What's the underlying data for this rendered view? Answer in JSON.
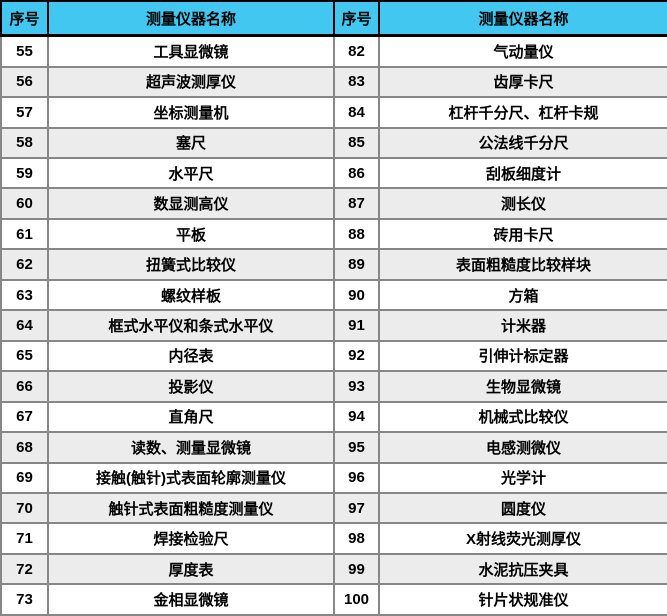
{
  "table": {
    "headers": [
      "序号",
      "测量仪器名称",
      "序号",
      "测量仪器名称"
    ],
    "rows": [
      {
        "no_left": "55",
        "name_left": "工具显微镜",
        "no_right": "82",
        "name_right": "气动量仪"
      },
      {
        "no_left": "56",
        "name_left": "超声波测厚仪",
        "no_right": "83",
        "name_right": "齿厚卡尺"
      },
      {
        "no_left": "57",
        "name_left": "坐标测量机",
        "no_right": "84",
        "name_right": "杠杆千分尺、杠杆卡规"
      },
      {
        "no_left": "58",
        "name_left": "塞尺",
        "no_right": "85",
        "name_right": "公法线千分尺"
      },
      {
        "no_left": "59",
        "name_left": "水平尺",
        "no_right": "86",
        "name_right": "刮板细度计"
      },
      {
        "no_left": "60",
        "name_left": "数显测高仪",
        "no_right": "87",
        "name_right": "测长仪"
      },
      {
        "no_left": "61",
        "name_left": "平板",
        "no_right": "88",
        "name_right": "砖用卡尺"
      },
      {
        "no_left": "62",
        "name_left": "扭簧式比较仪",
        "no_right": "89",
        "name_right": "表面粗糙度比较样块"
      },
      {
        "no_left": "63",
        "name_left": "螺纹样板",
        "no_right": "90",
        "name_right": "方箱"
      },
      {
        "no_left": "64",
        "name_left": "框式水平仪和条式水平仪",
        "no_right": "91",
        "name_right": "计米器"
      },
      {
        "no_left": "65",
        "name_left": "内径表",
        "no_right": "92",
        "name_right": "引伸计标定器"
      },
      {
        "no_left": "66",
        "name_left": "投影仪",
        "no_right": "93",
        "name_right": "生物显微镜"
      },
      {
        "no_left": "67",
        "name_left": "直角尺",
        "no_right": "94",
        "name_right": "机械式比较仪"
      },
      {
        "no_left": "68",
        "name_left": "读数、测量显微镜",
        "no_right": "95",
        "name_right": "电感测微仪"
      },
      {
        "no_left": "69",
        "name_left": "接触(触针)式表面轮廓测量仪",
        "no_right": "96",
        "name_right": "光学计"
      },
      {
        "no_left": "70",
        "name_left": "触针式表面粗糙度测量仪",
        "no_right": "97",
        "name_right": "圆度仪"
      },
      {
        "no_left": "71",
        "name_left": "焊接检验尺",
        "no_right": "98",
        "name_right": "X射线荧光测厚仪"
      },
      {
        "no_left": "72",
        "name_left": "厚度表",
        "no_right": "99",
        "name_right": "水泥抗压夹具"
      },
      {
        "no_left": "73",
        "name_left": "金相显微镜",
        "no_right": "100",
        "name_right": "针片状规准仪"
      }
    ],
    "colors": {
      "header_bg": "#41C7F0",
      "header_border": "#000000",
      "body_border": "#878787",
      "row_bg": "#FFFFFF",
      "row_alt_bg": "#ECECEC",
      "text": "#000000"
    }
  }
}
